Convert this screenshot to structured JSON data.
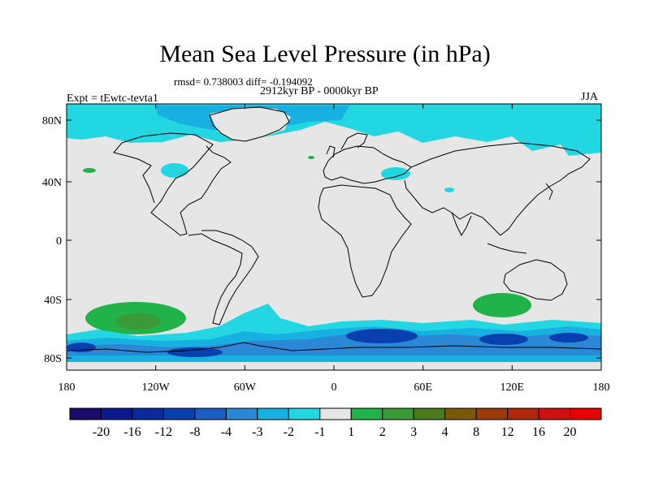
{
  "title": "Mean Sea Level Pressure (in hPa)",
  "stats": "rmsd= 0.738003 diff= -0.194092",
  "period": "2912kyr BP - 0000kyr BP",
  "experiment": "Expt = tEwtc-tevta1",
  "season": "JJA",
  "lat_ticks": [
    "80N",
    "40N",
    "0",
    "40S",
    "80S"
  ],
  "lon_ticks": [
    "180",
    "120W",
    "60W",
    "0",
    "60E",
    "120E",
    "180"
  ],
  "colorbar": {
    "labels": [
      "-20",
      "-16",
      "-12",
      "-8",
      "-4",
      "-3",
      "-2",
      "-1",
      "1",
      "2",
      "3",
      "4",
      "8",
      "12",
      "16",
      "20"
    ],
    "colors": [
      "#1a0a6b",
      "#0a1a8c",
      "#0a2a9e",
      "#0a3fb0",
      "#1b5fc4",
      "#2a88d6",
      "#18b0e0",
      "#22d6e2",
      "#e6e6e6",
      "#22b24a",
      "#3a9a36",
      "#4a7a1e",
      "#7a5a0a",
      "#9a3a0a",
      "#b02808",
      "#d01010",
      "#e60000"
    ]
  },
  "colors": {
    "neutral": "#e6e6e6",
    "light_blue": "#22d6e2",
    "mid_blue": "#18b0e0",
    "blue": "#2a88d6",
    "dark_blue": "#0a3fb0",
    "green": "#22b24a",
    "dark_green": "#3a9a36"
  }
}
